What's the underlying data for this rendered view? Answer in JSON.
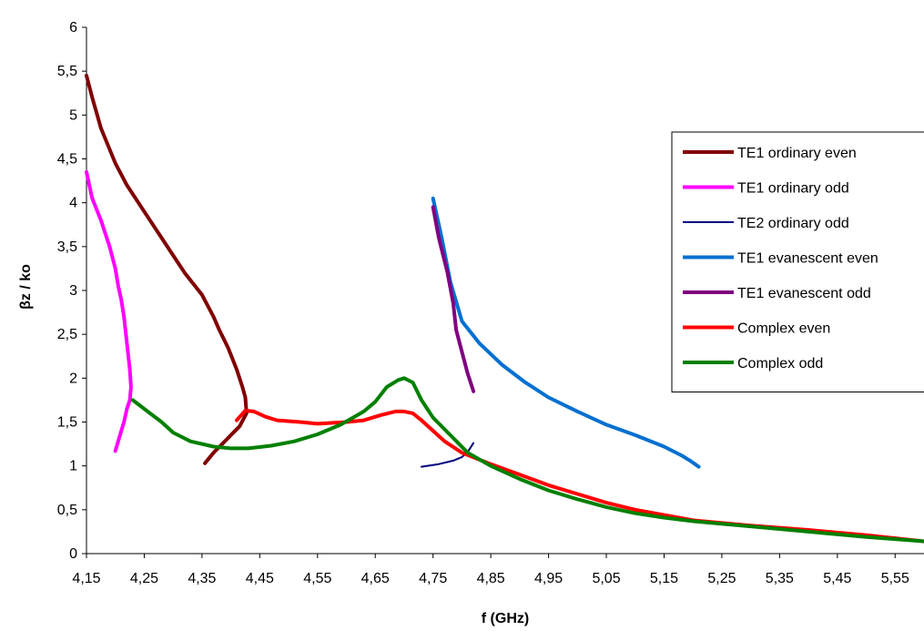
{
  "chart_data": {
    "type": "line",
    "title": "",
    "xlabel": "f (GHz)",
    "ylabel": "βz / ko",
    "xlim": [
      4.15,
      5.6
    ],
    "ylim": [
      0,
      6
    ],
    "grid": false,
    "legend_position": "right",
    "x_ticks": [
      {
        "value": 4.15,
        "label": "4,15"
      },
      {
        "value": 4.25,
        "label": "4,25"
      },
      {
        "value": 4.35,
        "label": "4,35"
      },
      {
        "value": 4.45,
        "label": "4,45"
      },
      {
        "value": 4.55,
        "label": "4,55"
      },
      {
        "value": 4.65,
        "label": "4,65"
      },
      {
        "value": 4.75,
        "label": "4,75"
      },
      {
        "value": 4.85,
        "label": "4,85"
      },
      {
        "value": 4.95,
        "label": "4,95"
      },
      {
        "value": 5.05,
        "label": "5,05"
      },
      {
        "value": 5.15,
        "label": "5,15"
      },
      {
        "value": 5.25,
        "label": "5,25"
      },
      {
        "value": 5.35,
        "label": "5,35"
      },
      {
        "value": 5.45,
        "label": "5,45"
      },
      {
        "value": 5.55,
        "label": "5,55"
      }
    ],
    "y_ticks": [
      {
        "value": 0,
        "label": "0"
      },
      {
        "value": 0.5,
        "label": "0,5"
      },
      {
        "value": 1,
        "label": "1"
      },
      {
        "value": 1.5,
        "label": "1,5"
      },
      {
        "value": 2,
        "label": "2"
      },
      {
        "value": 2.5,
        "label": "2,5"
      },
      {
        "value": 3,
        "label": "3"
      },
      {
        "value": 3.5,
        "label": "3,5"
      },
      {
        "value": 4,
        "label": "4"
      },
      {
        "value": 4.5,
        "label": "4,5"
      },
      {
        "value": 5,
        "label": "5"
      },
      {
        "value": 5.5,
        "label": "5,5"
      },
      {
        "value": 6,
        "label": "6"
      }
    ],
    "series": [
      {
        "name": "TE1 ordinary even",
        "color": "#800000",
        "width": 4,
        "points": [
          [
            4.15,
            5.45
          ],
          [
            4.16,
            5.2
          ],
          [
            4.175,
            4.85
          ],
          [
            4.2,
            4.45
          ],
          [
            4.22,
            4.2
          ],
          [
            4.25,
            3.9
          ],
          [
            4.275,
            3.65
          ],
          [
            4.3,
            3.4
          ],
          [
            4.32,
            3.2
          ],
          [
            4.35,
            2.95
          ],
          [
            4.37,
            2.7
          ],
          [
            4.38,
            2.55
          ],
          [
            4.395,
            2.35
          ],
          [
            4.41,
            2.1
          ],
          [
            4.42,
            1.9
          ],
          [
            4.425,
            1.78
          ],
          [
            4.427,
            1.6
          ],
          [
            4.415,
            1.45
          ],
          [
            4.4,
            1.35
          ],
          [
            4.385,
            1.25
          ],
          [
            4.37,
            1.15
          ],
          [
            4.355,
            1.03
          ]
        ]
      },
      {
        "name": "TE1 ordinary odd",
        "color": "#ff00ff",
        "width": 4,
        "points": [
          [
            4.15,
            4.35
          ],
          [
            4.16,
            4.05
          ],
          [
            4.175,
            3.8
          ],
          [
            4.19,
            3.5
          ],
          [
            4.2,
            3.25
          ],
          [
            4.205,
            3.05
          ],
          [
            4.21,
            2.9
          ],
          [
            4.215,
            2.7
          ],
          [
            4.22,
            2.4
          ],
          [
            4.225,
            2.1
          ],
          [
            4.227,
            1.9
          ],
          [
            4.225,
            1.75
          ],
          [
            4.22,
            1.65
          ],
          [
            4.215,
            1.5
          ],
          [
            4.208,
            1.35
          ],
          [
            4.2,
            1.17
          ]
        ]
      },
      {
        "name": "TE2 ordinary odd",
        "color": "#000080",
        "width": 2,
        "points": [
          [
            4.73,
            0.99
          ],
          [
            4.76,
            1.02
          ],
          [
            4.785,
            1.06
          ],
          [
            4.8,
            1.1
          ],
          [
            4.81,
            1.16
          ],
          [
            4.82,
            1.26
          ]
        ]
      },
      {
        "name": "TE1 evanescent even",
        "color": "#0070d0",
        "width": 4,
        "points": [
          [
            4.75,
            4.05
          ],
          [
            4.765,
            3.6
          ],
          [
            4.78,
            3.1
          ],
          [
            4.8,
            2.65
          ],
          [
            4.83,
            2.4
          ],
          [
            4.87,
            2.15
          ],
          [
            4.91,
            1.95
          ],
          [
            4.95,
            1.78
          ],
          [
            5.0,
            1.62
          ],
          [
            5.05,
            1.47
          ],
          [
            5.1,
            1.35
          ],
          [
            5.15,
            1.22
          ],
          [
            5.18,
            1.12
          ],
          [
            5.195,
            1.06
          ],
          [
            5.21,
            0.99
          ]
        ]
      },
      {
        "name": "TE1 evanescent odd",
        "color": "#800080",
        "width": 4,
        "points": [
          [
            4.75,
            3.95
          ],
          [
            4.76,
            3.6
          ],
          [
            4.775,
            3.2
          ],
          [
            4.785,
            2.85
          ],
          [
            4.79,
            2.55
          ],
          [
            4.8,
            2.3
          ],
          [
            4.81,
            2.05
          ],
          [
            4.82,
            1.85
          ]
        ]
      },
      {
        "name": "Complex even",
        "color": "#ff0000",
        "width": 4,
        "points": [
          [
            4.41,
            1.52
          ],
          [
            4.425,
            1.63
          ],
          [
            4.44,
            1.62
          ],
          [
            4.46,
            1.56
          ],
          [
            4.48,
            1.52
          ],
          [
            4.52,
            1.5
          ],
          [
            4.55,
            1.48
          ],
          [
            4.6,
            1.5
          ],
          [
            4.63,
            1.52
          ],
          [
            4.66,
            1.58
          ],
          [
            4.685,
            1.62
          ],
          [
            4.7,
            1.62
          ],
          [
            4.715,
            1.6
          ],
          [
            4.73,
            1.52
          ],
          [
            4.75,
            1.4
          ],
          [
            4.77,
            1.28
          ],
          [
            4.8,
            1.15
          ],
          [
            4.85,
            1.02
          ],
          [
            4.9,
            0.9
          ],
          [
            4.95,
            0.78
          ],
          [
            5.0,
            0.68
          ],
          [
            5.05,
            0.58
          ],
          [
            5.1,
            0.5
          ],
          [
            5.15,
            0.44
          ],
          [
            5.2,
            0.38
          ],
          [
            5.3,
            0.32
          ],
          [
            5.4,
            0.27
          ],
          [
            5.5,
            0.21
          ],
          [
            5.6,
            0.14
          ]
        ]
      },
      {
        "name": "Complex odd",
        "color": "#008000",
        "width": 4,
        "points": [
          [
            4.23,
            1.75
          ],
          [
            4.26,
            1.6
          ],
          [
            4.28,
            1.5
          ],
          [
            4.3,
            1.38
          ],
          [
            4.33,
            1.28
          ],
          [
            4.37,
            1.22
          ],
          [
            4.4,
            1.2
          ],
          [
            4.43,
            1.2
          ],
          [
            4.47,
            1.23
          ],
          [
            4.51,
            1.28
          ],
          [
            4.55,
            1.36
          ],
          [
            4.59,
            1.47
          ],
          [
            4.63,
            1.62
          ],
          [
            4.65,
            1.73
          ],
          [
            4.67,
            1.9
          ],
          [
            4.69,
            1.98
          ],
          [
            4.7,
            2.0
          ],
          [
            4.715,
            1.95
          ],
          [
            4.73,
            1.75
          ],
          [
            4.75,
            1.55
          ],
          [
            4.78,
            1.35
          ],
          [
            4.81,
            1.15
          ],
          [
            4.85,
            1.0
          ],
          [
            4.9,
            0.85
          ],
          [
            4.95,
            0.72
          ],
          [
            5.0,
            0.62
          ],
          [
            5.05,
            0.53
          ],
          [
            5.1,
            0.46
          ],
          [
            5.15,
            0.41
          ],
          [
            5.2,
            0.37
          ],
          [
            5.3,
            0.31
          ],
          [
            5.4,
            0.25
          ],
          [
            5.5,
            0.19
          ],
          [
            5.6,
            0.14
          ]
        ]
      }
    ]
  }
}
